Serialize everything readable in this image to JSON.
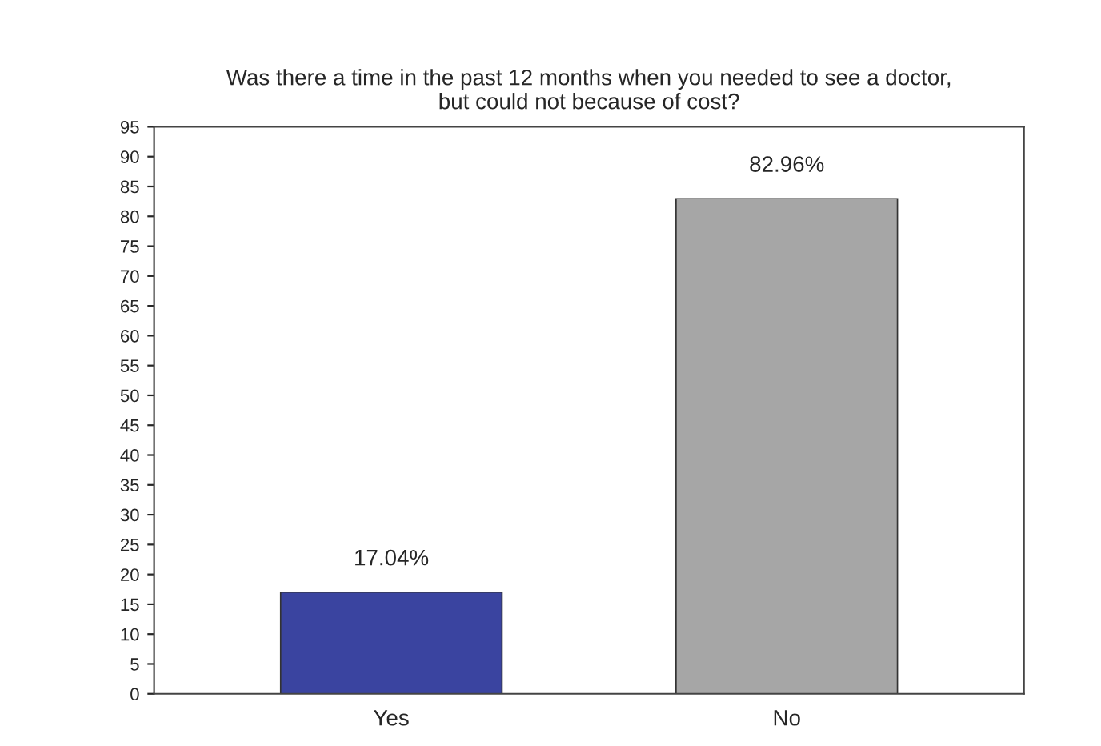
{
  "chart_data": {
    "type": "bar",
    "title": "Was there a time in the past 12 months when you needed to see a doctor,\nbut could not because of cost?",
    "categories": [
      "Yes",
      "No"
    ],
    "values": [
      17.04,
      82.96
    ],
    "colors": [
      "#3a44a0",
      "#a6a6a6"
    ],
    "value_labels": [
      "17.04%",
      "82.96%"
    ],
    "ylim": [
      0,
      95
    ],
    "yticks": [
      0,
      5,
      10,
      15,
      20,
      25,
      30,
      35,
      40,
      45,
      50,
      55,
      60,
      65,
      70,
      75,
      80,
      85,
      90,
      95
    ],
    "grid": false,
    "legend": false
  }
}
